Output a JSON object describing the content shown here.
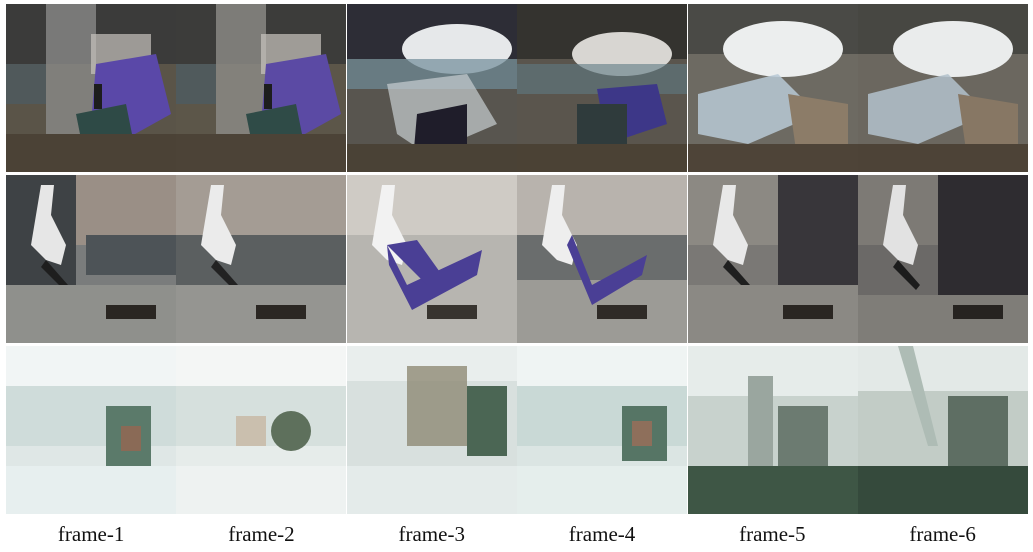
{
  "frames": [
    {
      "label": "frame-1"
    },
    {
      "label": "frame-2"
    },
    {
      "label": "frame-3"
    },
    {
      "label": "frame-4"
    },
    {
      "label": "frame-5"
    },
    {
      "label": "frame-6"
    }
  ],
  "rows": [
    {
      "name": "row-1-rock-scene"
    },
    {
      "name": "row-2-dancer-scene"
    },
    {
      "name": "row-3-street-scene"
    }
  ],
  "colors": {
    "row1_purple": "#4a3fa0",
    "row2_purple": "#3d3389",
    "row3_green": "#3f5a48",
    "sky_light": "#e8eef0",
    "stone_brown": "#5b5245"
  }
}
